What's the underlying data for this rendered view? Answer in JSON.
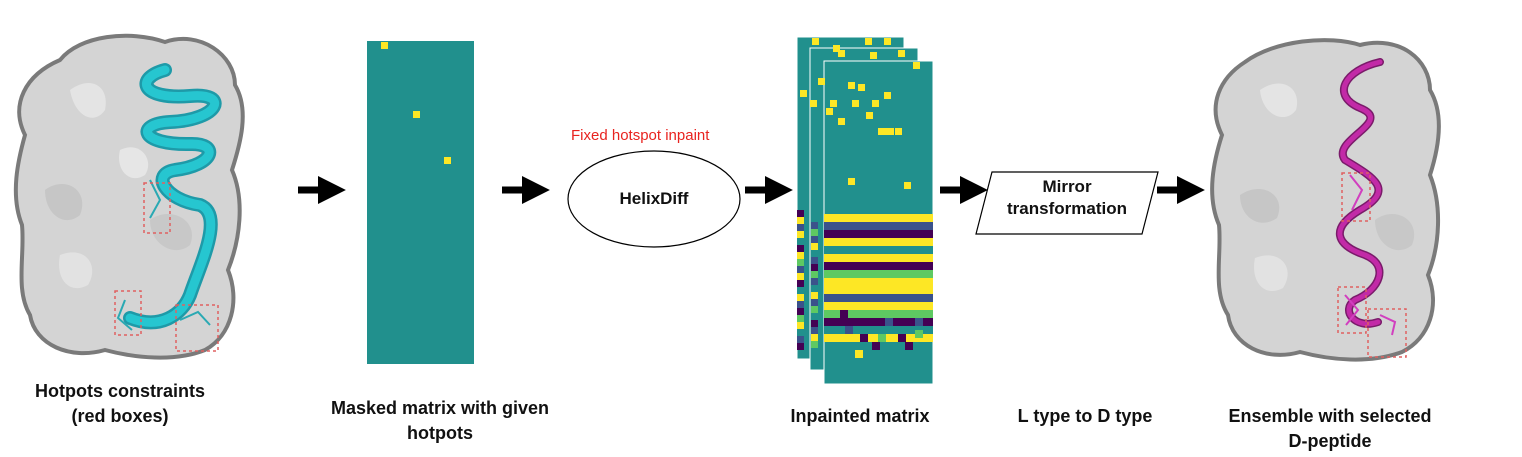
{
  "captions": {
    "hotspots": [
      "Hotpots constraints",
      "(red boxes)"
    ],
    "masked": [
      "Masked matrix with given",
      "hotpots"
    ],
    "inpainted": [
      "Inpainted matrix"
    ],
    "l_to_d": [
      "L type to D type"
    ],
    "ensemble": [
      "Ensemble with selected",
      "D-peptide"
    ]
  },
  "inpaint_label": "Fixed hotspot inpaint",
  "model_label": "HelixDiff",
  "mirror_label": [
    "Mirror",
    "transformation"
  ],
  "colors": {
    "matrix_teal": "#21908d",
    "hotspot_yellow": "#fde725",
    "dark_purple": "#440154",
    "indigo": "#3b528b",
    "green": "#5ec962",
    "inpaint_red": "#e8231f",
    "helix_cyan": "#26c6d0",
    "helix_magenta": "#c22aa7",
    "protein_gray": "#d4d4d4"
  },
  "icons": [
    "right-arrow-icon",
    "protein-surface-icon",
    "helix-icon"
  ]
}
